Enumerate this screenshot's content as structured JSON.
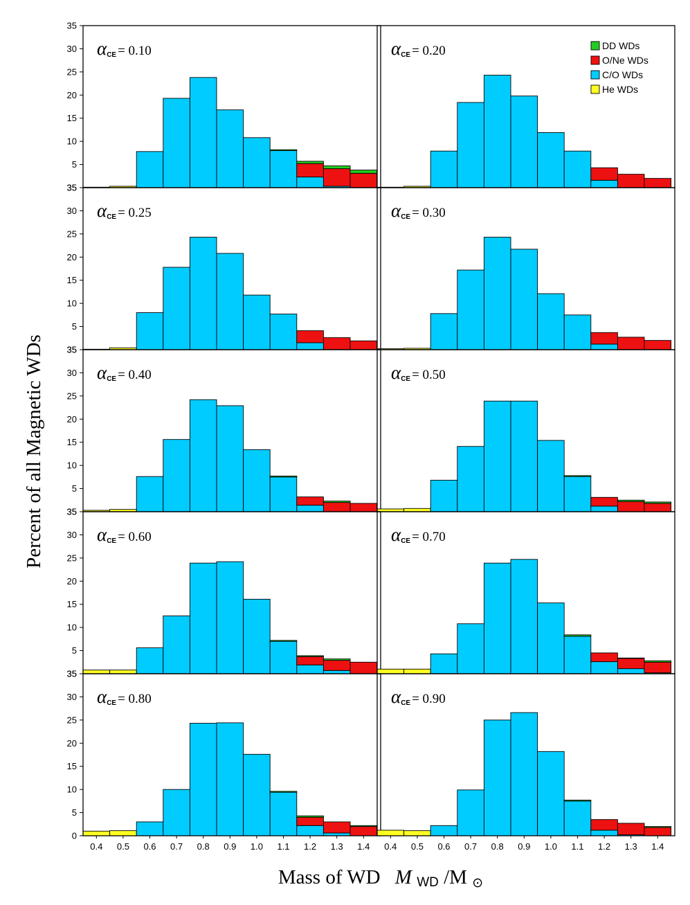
{
  "figure": {
    "ylabel": "Percent of all Magnetic WDs",
    "xlabel_prefix": "Mass of WD",
    "xlabel_math_italic": "M",
    "xlabel_math_sub": "WD",
    "xlabel_math_suffix": "/M",
    "xlabel_sun_symbol": "⊙",
    "panel_label_symbol": "α",
    "panel_label_sub": "CE",
    "panel_label_eq": "= "
  },
  "legend": {
    "placement": "top-right of top-right panel",
    "items": [
      {
        "label": "DD WDs",
        "color": "#22cc22"
      },
      {
        "label": "O/Ne WDs",
        "color": "#ee1111"
      },
      {
        "label": "C/O WDs",
        "color": "#00ccff"
      },
      {
        "label": "He WDs",
        "color": "#ffff22"
      }
    ]
  },
  "chart_data": {
    "type": "bar",
    "stacked": true,
    "categories": [
      "0.4",
      "0.5",
      "0.6",
      "0.7",
      "0.8",
      "0.9",
      "1.0",
      "1.1",
      "1.2",
      "1.3",
      "1.4"
    ],
    "ylim": [
      0,
      35
    ],
    "yticks": [
      0,
      5,
      10,
      15,
      20,
      25,
      30,
      35
    ],
    "ytick_labels": [
      "35",
      "5",
      "10",
      "15",
      "20",
      "25",
      "30",
      "35"
    ],
    "bottom_ytick_labels": [
      "0",
      "5",
      "10",
      "15",
      "20",
      "25",
      "30",
      "35"
    ],
    "xlabel": "Mass of WD M_WD/M_sun",
    "ylabel": "Percent of all Magnetic WDs",
    "series_order": [
      "He WDs",
      "C/O WDs",
      "O/Ne WDs",
      "DD WDs"
    ],
    "series_colors": [
      "#ffff22",
      "#00ccff",
      "#ee1111",
      "#22cc22"
    ],
    "panels": [
      {
        "alpha": "0.10",
        "series": [
          {
            "name": "He WDs",
            "values": [
              0.1,
              0.3,
              0,
              0,
              0,
              0,
              0,
              0,
              0,
              0,
              0
            ]
          },
          {
            "name": "C/O WDs",
            "values": [
              0,
              0,
              7.8,
              19.3,
              23.8,
              16.8,
              10.8,
              8.0,
              2.3,
              0.3,
              0
            ]
          },
          {
            "name": "O/Ne WDs",
            "values": [
              0,
              0,
              0,
              0,
              0,
              0,
              0,
              0,
              2.9,
              3.8,
              3.1
            ]
          },
          {
            "name": "DD WDs",
            "values": [
              0,
              0,
              0,
              0,
              0,
              0,
              0,
              0.2,
              0.5,
              0.6,
              0.7
            ]
          }
        ]
      },
      {
        "alpha": "0.20",
        "series": [
          {
            "name": "He WDs",
            "values": [
              0.1,
              0.3,
              0,
              0,
              0,
              0,
              0,
              0,
              0,
              0,
              0
            ]
          },
          {
            "name": "C/O WDs",
            "values": [
              0,
              0,
              7.9,
              18.4,
              24.3,
              19.8,
              11.9,
              7.9,
              1.6,
              0,
              0
            ]
          },
          {
            "name": "O/Ne WDs",
            "values": [
              0,
              0,
              0,
              0,
              0,
              0,
              0,
              0,
              2.7,
              2.9,
              2.0
            ]
          },
          {
            "name": "DD WDs",
            "values": [
              0,
              0,
              0,
              0,
              0,
              0,
              0,
              0,
              0,
              0,
              0
            ]
          }
        ]
      },
      {
        "alpha": "0.25",
        "series": [
          {
            "name": "He WDs",
            "values": [
              0.1,
              0.4,
              0,
              0,
              0,
              0,
              0,
              0,
              0,
              0,
              0
            ]
          },
          {
            "name": "C/O WDs",
            "values": [
              0,
              0,
              8.0,
              17.8,
              24.3,
              20.8,
              11.8,
              7.7,
              1.5,
              0,
              0
            ]
          },
          {
            "name": "O/Ne WDs",
            "values": [
              0,
              0,
              0,
              0,
              0,
              0,
              0,
              0,
              2.6,
              2.6,
              1.9
            ]
          },
          {
            "name": "DD WDs",
            "values": [
              0,
              0,
              0,
              0,
              0,
              0,
              0,
              0,
              0,
              0,
              0
            ]
          }
        ]
      },
      {
        "alpha": "0.30",
        "series": [
          {
            "name": "He WDs",
            "values": [
              0.2,
              0.3,
              0,
              0,
              0,
              0,
              0,
              0,
              0,
              0,
              0
            ]
          },
          {
            "name": "C/O WDs",
            "values": [
              0,
              0,
              7.8,
              17.2,
              24.3,
              21.7,
              12.1,
              7.5,
              1.2,
              0,
              0
            ]
          },
          {
            "name": "O/Ne WDs",
            "values": [
              0,
              0,
              0,
              0,
              0,
              0,
              0,
              0,
              2.5,
              2.7,
              2.0
            ]
          },
          {
            "name": "DD WDs",
            "values": [
              0,
              0,
              0,
              0,
              0,
              0,
              0,
              0,
              0,
              0,
              0
            ]
          }
        ]
      },
      {
        "alpha": "0.40",
        "series": [
          {
            "name": "He WDs",
            "values": [
              0.3,
              0.5,
              0,
              0,
              0,
              0,
              0,
              0,
              0,
              0,
              0
            ]
          },
          {
            "name": "C/O WDs",
            "values": [
              0,
              0,
              7.6,
              15.6,
              24.2,
              22.9,
              13.4,
              7.5,
              1.4,
              0,
              0
            ]
          },
          {
            "name": "O/Ne WDs",
            "values": [
              0,
              0,
              0,
              0,
              0,
              0,
              0,
              0,
              1.8,
              2.0,
              1.8
            ]
          },
          {
            "name": "DD WDs",
            "values": [
              0,
              0,
              0,
              0,
              0,
              0,
              0,
              0.2,
              0,
              0.3,
              0
            ]
          }
        ]
      },
      {
        "alpha": "0.50",
        "series": [
          {
            "name": "He WDs",
            "values": [
              0.6,
              0.7,
              0,
              0,
              0,
              0,
              0,
              0,
              0,
              0,
              0
            ]
          },
          {
            "name": "C/O WDs",
            "values": [
              0,
              0,
              6.8,
              14.1,
              23.9,
              23.9,
              15.4,
              7.6,
              1.2,
              0,
              0
            ]
          },
          {
            "name": "O/Ne WDs",
            "values": [
              0,
              0,
              0,
              0,
              0,
              0,
              0,
              0,
              1.9,
              2.2,
              1.8
            ]
          },
          {
            "name": "DD WDs",
            "values": [
              0,
              0,
              0,
              0,
              0,
              0,
              0,
              0.2,
              0,
              0.3,
              0.3
            ]
          }
        ]
      },
      {
        "alpha": "0.60",
        "series": [
          {
            "name": "He WDs",
            "values": [
              0.8,
              0.8,
              0,
              0,
              0,
              0,
              0,
              0,
              0,
              0,
              0
            ]
          },
          {
            "name": "C/O WDs",
            "values": [
              0,
              0,
              5.6,
              12.5,
              23.9,
              24.2,
              16.1,
              7.0,
              1.9,
              0.7,
              0
            ]
          },
          {
            "name": "O/Ne WDs",
            "values": [
              0,
              0,
              0,
              0,
              0,
              0,
              0,
              0,
              1.8,
              2.2,
              2.5
            ]
          },
          {
            "name": "DD WDs",
            "values": [
              0,
              0,
              0,
              0,
              0,
              0,
              0,
              0.2,
              0.2,
              0.3,
              0
            ]
          }
        ]
      },
      {
        "alpha": "0.70",
        "series": [
          {
            "name": "He WDs",
            "values": [
              1.0,
              1.0,
              0,
              0,
              0,
              0,
              0,
              0,
              0,
              0,
              0
            ]
          },
          {
            "name": "C/O WDs",
            "values": [
              0,
              0,
              4.3,
              10.8,
              23.9,
              24.7,
              15.3,
              8.1,
              2.6,
              1.1,
              0.2
            ]
          },
          {
            "name": "O/Ne WDs",
            "values": [
              0,
              0,
              0,
              0,
              0,
              0,
              0,
              0,
              1.9,
              2.2,
              2.3
            ]
          },
          {
            "name": "DD WDs",
            "values": [
              0,
              0,
              0,
              0,
              0,
              0,
              0,
              0.3,
              0,
              0.1,
              0.3
            ]
          }
        ]
      },
      {
        "alpha": "0.80",
        "series": [
          {
            "name": "He WDs",
            "values": [
              1.0,
              1.1,
              0,
              0,
              0,
              0,
              0,
              0,
              0,
              0,
              0
            ]
          },
          {
            "name": "C/O WDs",
            "values": [
              0,
              0,
              3.0,
              10.0,
              24.3,
              24.4,
              17.6,
              9.4,
              2.2,
              0.6,
              0
            ]
          },
          {
            "name": "O/Ne WDs",
            "values": [
              0,
              0,
              0,
              0,
              0,
              0,
              0,
              0,
              1.8,
              2.4,
              2.0
            ]
          },
          {
            "name": "DD WDs",
            "values": [
              0,
              0,
              0,
              0,
              0,
              0,
              0,
              0.2,
              0.3,
              0,
              0.2
            ]
          }
        ]
      },
      {
        "alpha": "0.90",
        "series": [
          {
            "name": "He WDs",
            "values": [
              1.2,
              1.1,
              0,
              0,
              0,
              0,
              0,
              0,
              0,
              0,
              0
            ]
          },
          {
            "name": "C/O WDs",
            "values": [
              0,
              0,
              2.2,
              9.9,
              25.0,
              26.6,
              18.2,
              7.5,
              1.2,
              0.2,
              0
            ]
          },
          {
            "name": "O/Ne WDs",
            "values": [
              0,
              0,
              0,
              0,
              0,
              0,
              0,
              0,
              2.3,
              2.5,
              1.8
            ]
          },
          {
            "name": "DD WDs",
            "values": [
              0,
              0,
              0,
              0,
              0,
              0,
              0,
              0.2,
              0,
              0,
              0.2
            ]
          }
        ]
      }
    ]
  }
}
